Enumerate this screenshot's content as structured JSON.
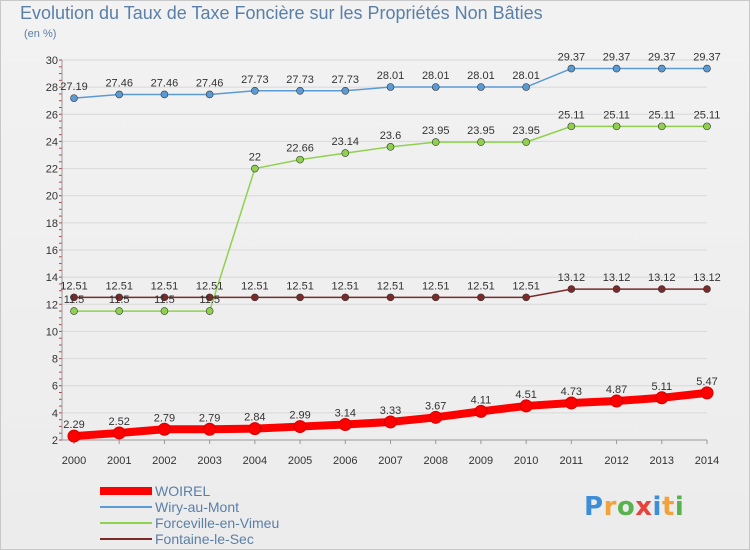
{
  "title": "Evolution du Taux de Taxe Foncière sur les Propriétés Non Bâties",
  "subtitle": "(en %)",
  "logo": "Proxiti",
  "chart_data": {
    "type": "line",
    "title": "Evolution du Taux de Taxe Foncière sur les Propriétés Non Bâties",
    "ylabel": "(en %)",
    "xlabel": "",
    "ylim": [
      2,
      30
    ],
    "yticks": [
      2,
      4,
      6,
      8,
      10,
      12,
      14,
      16,
      18,
      20,
      22,
      24,
      26,
      28,
      30
    ],
    "categories": [
      "2000",
      "2001",
      "2002",
      "2003",
      "2004",
      "2005",
      "2006",
      "2007",
      "2008",
      "2009",
      "2010",
      "2011",
      "2012",
      "2013",
      "2014"
    ],
    "series": [
      {
        "name": "WOIREL",
        "color": "#ff0000",
        "values": [
          2.29,
          2.52,
          2.79,
          2.79,
          2.84,
          2.99,
          3.14,
          3.33,
          3.67,
          4.11,
          4.51,
          4.73,
          4.87,
          5.11,
          5.47
        ],
        "labels": [
          "2.29",
          "2.52",
          "2.79",
          "2.79",
          "2.84",
          "2.99",
          "3.14",
          "3.33",
          "3.67",
          "4.11",
          "4.51",
          "4.73",
          "4.87",
          "5.11",
          "5.47"
        ]
      },
      {
        "name": "Wiry-au-Mont",
        "color": "#5b9bd5",
        "values": [
          27.19,
          27.46,
          27.46,
          27.46,
          27.73,
          27.73,
          27.73,
          28.01,
          28.01,
          28.01,
          28.01,
          29.37,
          29.37,
          29.37,
          29.37
        ],
        "labels": [
          "27.19",
          "27.46",
          "27.46",
          "27.46",
          "27.73",
          "27.73",
          "27.73",
          "28.01",
          "28.01",
          "28.01",
          "28.01",
          "29.37",
          "29.37",
          "29.37",
          "29.37"
        ]
      },
      {
        "name": "Forceville-en-Vimeu",
        "color": "#8fd14f",
        "values": [
          11.5,
          11.5,
          11.5,
          11.5,
          22,
          22.66,
          23.14,
          23.6,
          23.95,
          23.95,
          23.95,
          25.11,
          25.11,
          25.11,
          25.11
        ],
        "labels": [
          "11.5",
          "11.5",
          "11.5",
          "11.5",
          "22",
          "22.66",
          "23.14",
          "23.6",
          "23.95",
          "23.95",
          "23.95",
          "25.11",
          "25.11",
          "25.11",
          "25.11"
        ]
      },
      {
        "name": "Fontaine-le-Sec",
        "color": "#7b2a2a",
        "values": [
          12.51,
          12.51,
          12.51,
          12.51,
          12.51,
          12.51,
          12.51,
          12.51,
          12.51,
          12.51,
          12.51,
          13.12,
          13.12,
          13.12,
          13.12
        ],
        "labels": [
          "12.51",
          "12.51",
          "12.51",
          "12.51",
          "12.51",
          "12.51",
          "12.51",
          "12.51",
          "12.51",
          "12.51",
          "12.51",
          "13.12",
          "13.12",
          "13.12",
          "13.12"
        ]
      }
    ],
    "legend_position": "bottom-left",
    "grid": true
  }
}
